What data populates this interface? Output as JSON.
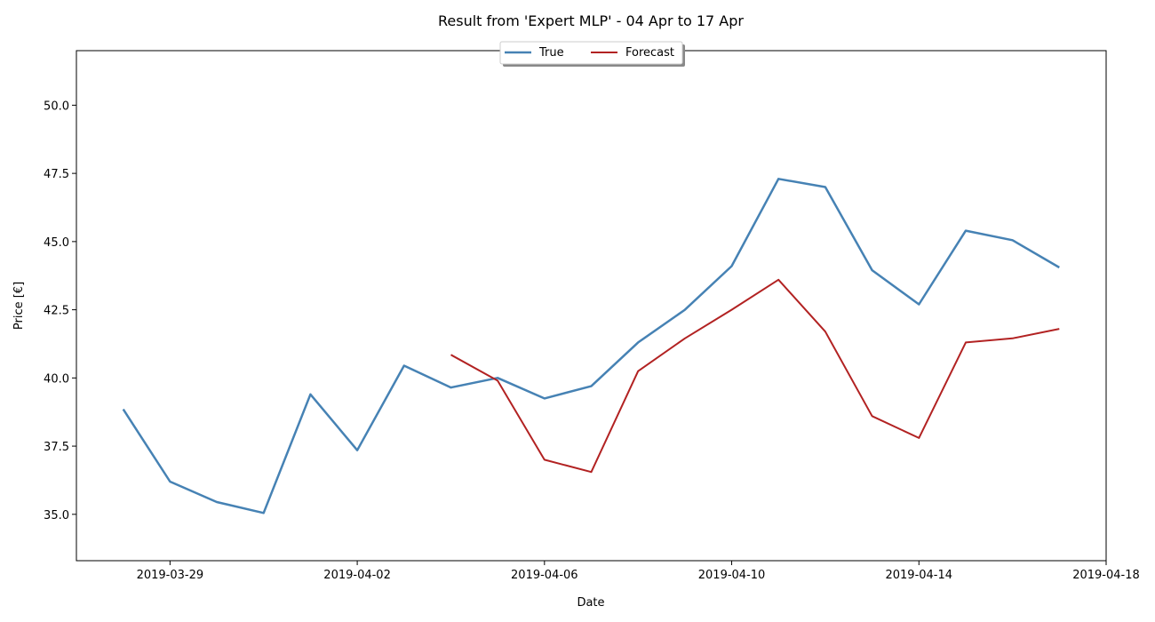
{
  "chart_data": {
    "type": "line",
    "title": "Result from 'Expert MLP' - 04 Apr to 17 Apr",
    "xlabel": "Date",
    "ylabel": "Price [€]",
    "xlim": [
      "2019-03-27",
      "2019-04-18"
    ],
    "ylim": [
      33.3,
      52.0
    ],
    "x_ticks": [
      "2019-03-29",
      "2019-04-02",
      "2019-04-06",
      "2019-04-10",
      "2019-04-14",
      "2019-04-18"
    ],
    "y_ticks": [
      35.0,
      37.5,
      40.0,
      42.5,
      45.0,
      47.5,
      50.0
    ],
    "y_tick_labels": [
      "35.0",
      "37.5",
      "40.0",
      "42.5",
      "45.0",
      "47.5",
      "50.0"
    ],
    "grid": false,
    "legend_position": "top-center",
    "series": [
      {
        "name": "True",
        "color": "#4682b4",
        "points": [
          {
            "x": "2019-03-28",
            "y": 38.85
          },
          {
            "x": "2019-03-29",
            "y": 36.2
          },
          {
            "x": "2019-03-30",
            "y": 35.45
          },
          {
            "x": "2019-03-31",
            "y": 35.05
          },
          {
            "x": "2019-04-01",
            "y": 39.4
          },
          {
            "x": "2019-04-02",
            "y": 37.35
          },
          {
            "x": "2019-04-03",
            "y": 40.45
          },
          {
            "x": "2019-04-04",
            "y": 39.65
          },
          {
            "x": "2019-04-05",
            "y": 40.0
          },
          {
            "x": "2019-04-06",
            "y": 39.25
          },
          {
            "x": "2019-04-07",
            "y": 39.7
          },
          {
            "x": "2019-04-08",
            "y": 41.3
          },
          {
            "x": "2019-04-09",
            "y": 42.5
          },
          {
            "x": "2019-04-10",
            "y": 44.1
          },
          {
            "x": "2019-04-11",
            "y": 47.3
          },
          {
            "x": "2019-04-12",
            "y": 47.0
          },
          {
            "x": "2019-04-13",
            "y": 43.95
          },
          {
            "x": "2019-04-14",
            "y": 42.7
          },
          {
            "x": "2019-04-15",
            "y": 45.4
          },
          {
            "x": "2019-04-16",
            "y": 45.05
          },
          {
            "x": "2019-04-17",
            "y": 44.05
          }
        ]
      },
      {
        "name": "Forecast",
        "color": "#b22222",
        "points": [
          {
            "x": "2019-04-04",
            "y": 40.85
          },
          {
            "x": "2019-04-05",
            "y": 39.9
          },
          {
            "x": "2019-04-06",
            "y": 37.0
          },
          {
            "x": "2019-04-07",
            "y": 36.55
          },
          {
            "x": "2019-04-08",
            "y": 40.25
          },
          {
            "x": "2019-04-09",
            "y": 41.45
          },
          {
            "x": "2019-04-10",
            "y": 42.5
          },
          {
            "x": "2019-04-11",
            "y": 43.6
          },
          {
            "x": "2019-04-12",
            "y": 41.7
          },
          {
            "x": "2019-04-13",
            "y": 38.6
          },
          {
            "x": "2019-04-14",
            "y": 37.8
          },
          {
            "x": "2019-04-15",
            "y": 41.3
          },
          {
            "x": "2019-04-16",
            "y": 41.45
          },
          {
            "x": "2019-04-17",
            "y": 41.8
          }
        ]
      }
    ]
  }
}
